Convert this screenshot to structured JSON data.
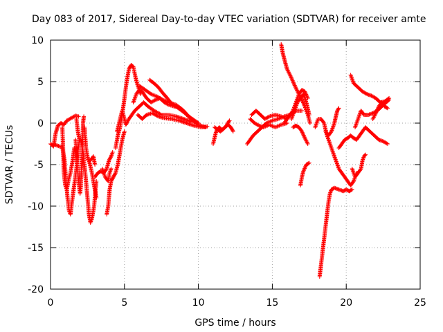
{
  "chart_data": {
    "type": "scatter",
    "title": "Day 083 of 2017, Sidereal Day-to-day VTEC variation (SDTVAR) for receiver amte",
    "xlabel": "GPS time / hours",
    "ylabel": "SDTVAR / TECUs",
    "xlim": [
      0,
      25
    ],
    "ylim": [
      -20,
      10
    ],
    "x_ticks": [
      0,
      5,
      10,
      15,
      20,
      25
    ],
    "y_ticks": [
      -20,
      -15,
      -10,
      -5,
      0,
      5,
      10
    ],
    "grid": true,
    "marker": "plus",
    "marker_color": "#ff0000",
    "tracks": [
      [
        [
          0.0,
          -2.5
        ],
        [
          0.2,
          -2.8
        ],
        [
          0.35,
          -1.2
        ],
        [
          0.5,
          -0.3
        ],
        [
          0.7,
          0.0
        ],
        [
          0.9,
          -0.2
        ],
        [
          1.1,
          0.3
        ],
        [
          1.4,
          0.6
        ],
        [
          1.7,
          0.9
        ],
        [
          1.9,
          0.8
        ]
      ],
      [
        [
          0.3,
          -2.6
        ],
        [
          0.6,
          -2.8
        ],
        [
          0.8,
          -2.9
        ],
        [
          0.95,
          -4.5
        ],
        [
          1.05,
          -7.0
        ],
        [
          1.15,
          -9.0
        ],
        [
          1.25,
          -10.5
        ],
        [
          1.35,
          -11.0
        ],
        [
          1.45,
          -9.5
        ],
        [
          1.6,
          -7.5
        ],
        [
          1.75,
          -5.5
        ],
        [
          1.85,
          -3.5
        ],
        [
          1.95,
          -2.0
        ]
      ],
      [
        [
          0.8,
          -0.5
        ],
        [
          0.85,
          -3.0
        ],
        [
          0.9,
          -6.0
        ],
        [
          1.0,
          -7.5
        ],
        [
          1.1,
          -8.0
        ],
        [
          1.2,
          -7.0
        ],
        [
          1.35,
          -6.0
        ],
        [
          1.5,
          -4.5
        ],
        [
          1.6,
          -3.0
        ]
      ],
      [
        [
          1.7,
          -2.0
        ],
        [
          1.8,
          -5.0
        ],
        [
          1.9,
          -7.0
        ],
        [
          2.0,
          -8.5
        ],
        [
          2.05,
          -7.5
        ],
        [
          2.1,
          -5.0
        ],
        [
          2.15,
          -3.0
        ],
        [
          2.2,
          0.0
        ],
        [
          2.25,
          0.8
        ]
      ],
      [
        [
          1.75,
          0.5
        ],
        [
          1.85,
          -1.0
        ],
        [
          1.95,
          -2.0
        ],
        [
          2.05,
          -2.0
        ],
        [
          2.2,
          -3.5
        ],
        [
          2.35,
          -6.0
        ],
        [
          2.5,
          -9.0
        ],
        [
          2.6,
          -11.0
        ],
        [
          2.7,
          -12.0
        ],
        [
          2.8,
          -11.5
        ],
        [
          2.95,
          -10.0
        ],
        [
          3.1,
          -7.0
        ]
      ],
      [
        [
          2.3,
          -0.5
        ],
        [
          2.4,
          -3.0
        ],
        [
          2.55,
          -4.5
        ],
        [
          2.7,
          -4.5
        ],
        [
          2.9,
          -4.0
        ],
        [
          3.0,
          -5.0
        ]
      ],
      [
        [
          2.6,
          -4.5
        ],
        [
          2.8,
          -6.0
        ],
        [
          2.95,
          -7.5
        ],
        [
          3.1,
          -9.0
        ]
      ],
      [
        [
          3.0,
          -6.5
        ],
        [
          3.2,
          -6.0
        ],
        [
          3.4,
          -5.8
        ],
        [
          3.6,
          -6.0
        ],
        [
          3.8,
          -5.5
        ],
        [
          3.95,
          -4.5
        ],
        [
          4.1,
          -4.0
        ],
        [
          4.2,
          -3.5
        ]
      ],
      [
        [
          3.5,
          -5.5
        ],
        [
          3.7,
          -6.5
        ],
        [
          3.9,
          -7.0
        ],
        [
          4.0,
          -6.0
        ],
        [
          4.1,
          -5.5
        ]
      ],
      [
        [
          3.8,
          -11.0
        ],
        [
          3.9,
          -10.0
        ],
        [
          4.0,
          -8.0
        ],
        [
          4.1,
          -7.0
        ],
        [
          4.25,
          -6.5
        ],
        [
          4.4,
          -6.0
        ],
        [
          4.55,
          -5.0
        ],
        [
          4.7,
          -3.5
        ],
        [
          4.85,
          -2.0
        ],
        [
          5.0,
          -1.0
        ]
      ],
      [
        [
          4.4,
          -3.0
        ],
        [
          4.55,
          -1.5
        ],
        [
          4.7,
          -0.5
        ],
        [
          4.85,
          1.0
        ],
        [
          5.0,
          3.0
        ],
        [
          5.15,
          5.0
        ],
        [
          5.3,
          6.5
        ],
        [
          5.45,
          7.0
        ],
        [
          5.6,
          6.8
        ],
        [
          5.75,
          5.5
        ],
        [
          5.9,
          4.5
        ],
        [
          6.1,
          3.5
        ]
      ],
      [
        [
          4.5,
          -1.0
        ],
        [
          4.7,
          0.5
        ],
        [
          4.85,
          1.5
        ],
        [
          5.0,
          0.5
        ],
        [
          5.1,
          -0.2
        ],
        [
          5.3,
          0.5
        ],
        [
          5.5,
          1.0
        ],
        [
          5.7,
          1.5
        ],
        [
          6.0,
          2.0
        ],
        [
          6.3,
          2.5
        ],
        [
          6.6,
          2.0
        ],
        [
          7.0,
          1.5
        ],
        [
          7.5,
          1.0
        ],
        [
          8.0,
          1.0
        ],
        [
          8.5,
          0.8
        ],
        [
          9.0,
          0.5
        ],
        [
          9.5,
          0.2
        ],
        [
          10.0,
          0.0
        ]
      ],
      [
        [
          5.6,
          2.5
        ],
        [
          5.8,
          3.5
        ],
        [
          6.0,
          4.0
        ],
        [
          6.2,
          3.8
        ],
        [
          6.5,
          3.0
        ],
        [
          6.8,
          2.5
        ],
        [
          7.1,
          2.8
        ],
        [
          7.4,
          3.0
        ],
        [
          7.7,
          2.5
        ],
        [
          8.0,
          2.2
        ],
        [
          8.4,
          2.0
        ],
        [
          8.8,
          1.8
        ],
        [
          9.2,
          1.0
        ],
        [
          9.6,
          0.5
        ],
        [
          10.0,
          0.0
        ]
      ],
      [
        [
          6.0,
          4.5
        ],
        [
          6.4,
          4.0
        ],
        [
          6.8,
          3.5
        ],
        [
          7.2,
          3.2
        ],
        [
          7.6,
          2.8
        ],
        [
          8.0,
          2.5
        ],
        [
          8.5,
          2.2
        ],
        [
          9.0,
          1.5
        ],
        [
          9.5,
          0.5
        ],
        [
          10.0,
          -0.2
        ],
        [
          10.5,
          -0.5
        ]
      ],
      [
        [
          5.9,
          1.0
        ],
        [
          6.2,
          0.5
        ],
        [
          6.5,
          1.0
        ],
        [
          6.9,
          1.2
        ],
        [
          7.3,
          0.8
        ],
        [
          7.7,
          0.6
        ],
        [
          8.2,
          0.5
        ],
        [
          8.7,
          0.3
        ],
        [
          9.2,
          0.0
        ],
        [
          9.7,
          -0.3
        ],
        [
          10.2,
          -0.5
        ],
        [
          10.6,
          -0.4
        ]
      ],
      [
        [
          6.7,
          5.2
        ],
        [
          7.0,
          4.8
        ],
        [
          7.3,
          4.3
        ],
        [
          7.6,
          3.6
        ],
        [
          7.9,
          3.0
        ],
        [
          8.2,
          2.3
        ],
        [
          8.5,
          2.0
        ],
        [
          8.8,
          1.6
        ],
        [
          9.1,
          1.2
        ]
      ],
      [
        [
          11.0,
          -2.5
        ],
        [
          11.2,
          -1.0
        ],
        [
          11.4,
          -0.5
        ],
        [
          11.6,
          -0.8
        ],
        [
          11.8,
          -0.5
        ],
        [
          12.0,
          -0.2
        ],
        [
          12.2,
          -0.5
        ],
        [
          12.35,
          -1.0
        ]
      ],
      [
        [
          11.1,
          -0.5
        ],
        [
          11.3,
          -0.8
        ],
        [
          11.5,
          -1.0
        ],
        [
          11.7,
          -0.7
        ],
        [
          11.9,
          -0.3
        ],
        [
          12.1,
          0.3
        ]
      ],
      [
        [
          13.3,
          -2.5
        ],
        [
          13.5,
          -2.0
        ],
        [
          13.7,
          -1.5
        ],
        [
          14.0,
          -1.0
        ],
        [
          14.3,
          -0.5
        ],
        [
          14.6,
          0.0
        ],
        [
          15.0,
          0.3
        ],
        [
          15.4,
          0.5
        ],
        [
          15.8,
          0.8
        ],
        [
          16.2,
          1.0
        ],
        [
          16.6,
          1.5
        ],
        [
          17.0,
          1.5
        ]
      ],
      [
        [
          13.5,
          0.5
        ],
        [
          13.8,
          0.0
        ],
        [
          14.1,
          -0.3
        ],
        [
          14.4,
          -0.5
        ],
        [
          14.8,
          -0.2
        ],
        [
          15.2,
          -0.5
        ],
        [
          15.6,
          -0.2
        ],
        [
          16.0,
          0.0
        ]
      ],
      [
        [
          13.6,
          1.0
        ],
        [
          13.9,
          1.5
        ],
        [
          14.2,
          1.0
        ],
        [
          14.5,
          0.5
        ],
        [
          14.8,
          0.8
        ],
        [
          15.2,
          1.0
        ],
        [
          15.6,
          0.8
        ],
        [
          16.0,
          0.5
        ]
      ],
      [
        [
          15.6,
          9.5
        ],
        [
          15.7,
          8.5
        ],
        [
          15.8,
          7.8
        ],
        [
          16.0,
          6.5
        ],
        [
          16.2,
          5.8
        ],
        [
          16.4,
          5.0
        ],
        [
          16.6,
          4.2
        ],
        [
          16.8,
          3.5
        ],
        [
          17.0,
          2.8
        ],
        [
          17.2,
          2.0
        ],
        [
          17.4,
          1.0
        ],
        [
          17.55,
          0.0
        ]
      ],
      [
        [
          15.8,
          0.0
        ],
        [
          16.0,
          0.5
        ],
        [
          16.2,
          1.0
        ],
        [
          16.4,
          1.5
        ],
        [
          16.6,
          2.5
        ],
        [
          16.8,
          3.5
        ],
        [
          17.0,
          4.0
        ],
        [
          17.2,
          3.8
        ],
        [
          17.4,
          3.0
        ]
      ],
      [
        [
          16.3,
          0.5
        ],
        [
          16.5,
          1.5
        ],
        [
          16.7,
          2.5
        ],
        [
          16.9,
          3.0
        ],
        [
          17.1,
          3.5
        ],
        [
          17.3,
          2.5
        ],
        [
          17.5,
          1.0
        ]
      ],
      [
        [
          16.4,
          -0.5
        ],
        [
          16.6,
          -0.3
        ],
        [
          16.8,
          -0.5
        ],
        [
          17.0,
          -1.0
        ],
        [
          17.2,
          -1.8
        ],
        [
          17.4,
          -2.5
        ]
      ],
      [
        [
          16.9,
          -7.5
        ],
        [
          17.0,
          -6.5
        ],
        [
          17.1,
          -5.8
        ],
        [
          17.3,
          -5.0
        ],
        [
          17.5,
          -4.8
        ]
      ],
      [
        [
          17.9,
          -0.5
        ],
        [
          18.1,
          0.5
        ],
        [
          18.3,
          0.5
        ],
        [
          18.5,
          0.0
        ],
        [
          18.7,
          -1.5
        ],
        [
          18.9,
          -2.5
        ],
        [
          19.1,
          -3.5
        ],
        [
          19.3,
          -4.5
        ],
        [
          19.5,
          -5.5
        ],
        [
          19.7,
          -6.0
        ],
        [
          19.9,
          -6.5
        ],
        [
          20.1,
          -7.0
        ],
        [
          20.3,
          -7.5
        ],
        [
          20.5,
          -7.0
        ],
        [
          20.7,
          -6.0
        ]
      ],
      [
        [
          18.2,
          -18.5
        ],
        [
          18.3,
          -17.0
        ],
        [
          18.4,
          -15.5
        ],
        [
          18.5,
          -14.0
        ],
        [
          18.6,
          -12.5
        ],
        [
          18.7,
          -11.0
        ],
        [
          18.8,
          -9.5
        ],
        [
          18.9,
          -8.5
        ],
        [
          19.0,
          -8.0
        ],
        [
          19.2,
          -7.8
        ],
        [
          19.5,
          -8.0
        ],
        [
          19.8,
          -8.2
        ],
        [
          20.0,
          -8.0
        ],
        [
          20.2,
          -8.2
        ],
        [
          20.4,
          -8.0
        ]
      ],
      [
        [
          18.6,
          -1.0
        ],
        [
          18.8,
          -1.5
        ],
        [
          19.0,
          -1.0
        ],
        [
          19.2,
          0.0
        ],
        [
          19.3,
          0.8
        ],
        [
          19.4,
          1.5
        ],
        [
          19.5,
          1.8
        ]
      ],
      [
        [
          19.5,
          -3.0
        ],
        [
          19.7,
          -2.5
        ],
        [
          19.9,
          -2.0
        ],
        [
          20.1,
          -1.8
        ],
        [
          20.3,
          -1.5
        ],
        [
          20.5,
          -1.8
        ],
        [
          20.7,
          -2.0
        ],
        [
          20.9,
          -1.5
        ],
        [
          21.1,
          -1.0
        ],
        [
          21.3,
          -0.5
        ],
        [
          21.6,
          -1.0
        ],
        [
          21.9,
          -1.5
        ],
        [
          22.2,
          -2.0
        ],
        [
          22.5,
          -2.2
        ],
        [
          22.8,
          -2.5
        ]
      ],
      [
        [
          20.6,
          -0.5
        ],
        [
          20.8,
          0.5
        ],
        [
          21.0,
          1.5
        ],
        [
          21.2,
          1.0
        ],
        [
          21.5,
          1.0
        ],
        [
          21.8,
          1.2
        ],
        [
          22.1,
          1.5
        ],
        [
          22.4,
          2.0
        ],
        [
          22.7,
          2.5
        ],
        [
          22.9,
          2.8
        ]
      ],
      [
        [
          20.3,
          5.8
        ],
        [
          20.5,
          4.8
        ],
        [
          20.8,
          4.3
        ],
        [
          21.1,
          3.8
        ],
        [
          21.4,
          3.5
        ],
        [
          21.7,
          3.3
        ],
        [
          22.0,
          3.0
        ],
        [
          22.3,
          2.5
        ],
        [
          22.6,
          2.6
        ],
        [
          22.9,
          3.0
        ]
      ],
      [
        [
          21.8,
          0.5
        ],
        [
          22.0,
          1.2
        ],
        [
          22.2,
          2.0
        ],
        [
          22.4,
          2.5
        ],
        [
          22.6,
          2.0
        ],
        [
          22.8,
          1.8
        ]
      ],
      [
        [
          20.4,
          -5.5
        ],
        [
          20.6,
          -6.5
        ],
        [
          20.8,
          -6.0
        ],
        [
          21.0,
          -5.5
        ],
        [
          21.1,
          -4.5
        ],
        [
          21.2,
          -4.0
        ],
        [
          21.3,
          -3.8
        ]
      ]
    ]
  }
}
